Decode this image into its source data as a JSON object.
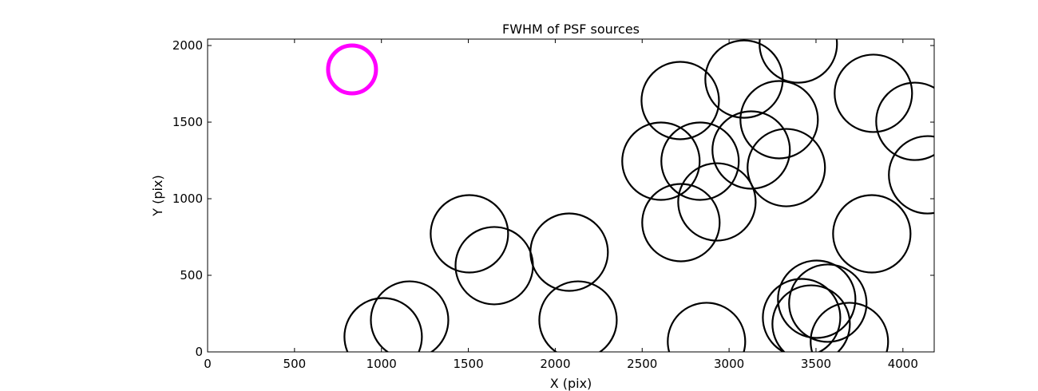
{
  "chart_data": {
    "type": "scatter",
    "title": "FWHM of PSF sources",
    "xlabel": "X (pix)",
    "ylabel": "Y (pix)",
    "xlim": [
      0,
      4180
    ],
    "ylim": [
      0,
      2042
    ],
    "xticks": [
      0,
      500,
      1000,
      1500,
      2000,
      2500,
      3000,
      3500,
      4000
    ],
    "yticks": [
      0,
      500,
      1000,
      1500,
      2000
    ],
    "grid": false,
    "series": [
      {
        "color": "#000000",
        "x": [
          1010,
          1162,
          1506,
          1649,
          2080,
          2131,
          2719,
          3086,
          3398,
          2608,
          2833,
          3127,
          3288,
          3329,
          2930,
          2723,
          2870,
          3830,
          4069,
          4142,
          3821,
          3417,
          3472,
          3504,
          3568,
          3692
        ],
        "values": [
          99,
          208,
          771,
          563,
          651,
          208,
          1641,
          1781,
          2010,
          1245,
          1245,
          1318,
          1516,
          1203,
          979,
          844,
          68,
          1688,
          1505,
          1156,
          771,
          224,
          182,
          344,
          318,
          68
        ]
      },
      {
        "color": "#ff00ff",
        "x": [
          831
        ],
        "values": [
          1844
        ]
      }
    ]
  }
}
